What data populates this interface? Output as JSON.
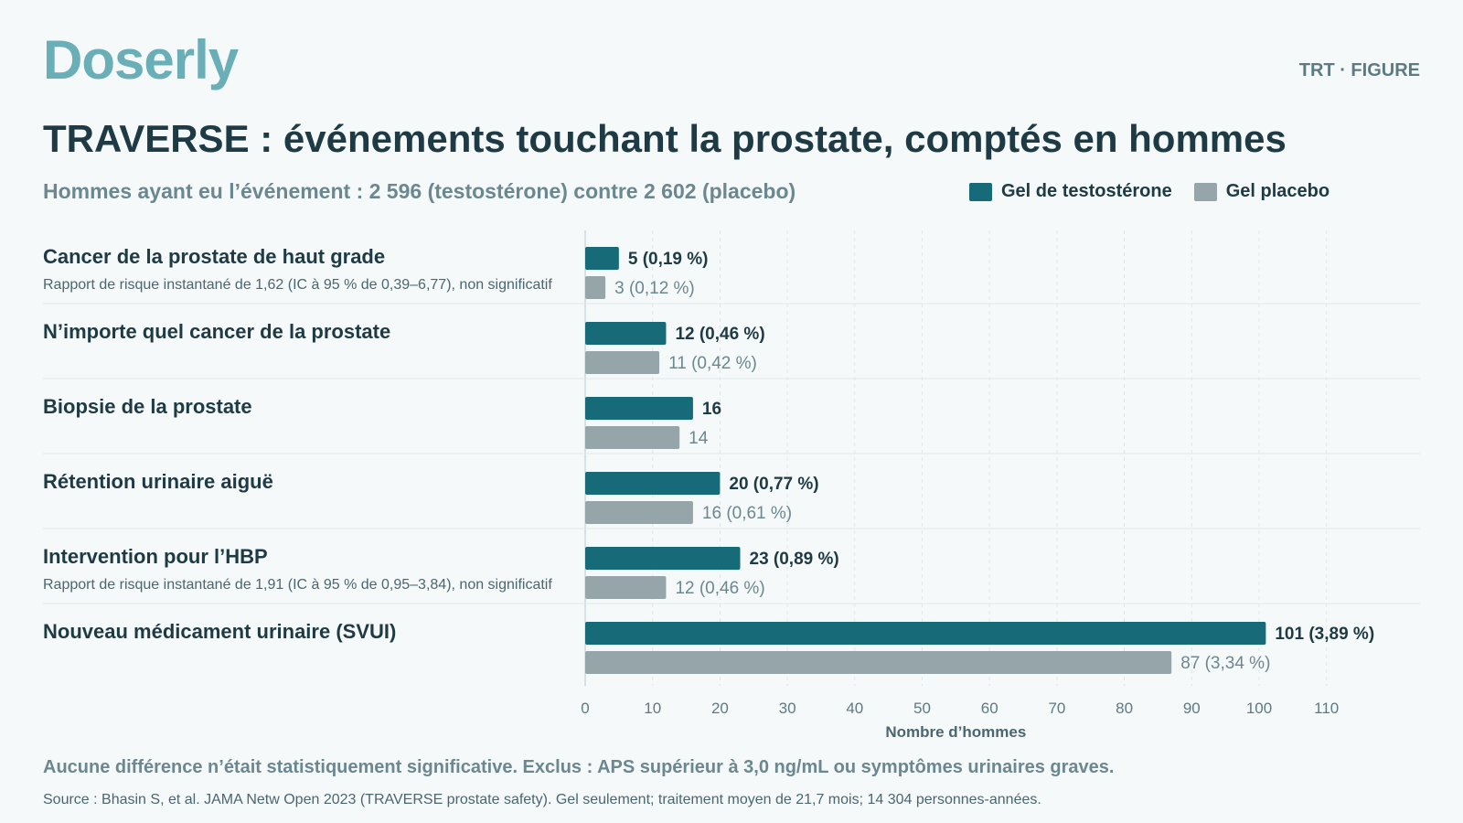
{
  "brand": {
    "logo_text": "Doserly",
    "tag": "TRT · FIGURE"
  },
  "colors": {
    "testosterone": "#176a77",
    "placebo": "#95a5aa",
    "logo": "#6aaeb8"
  },
  "legend": {
    "testosterone_label": "Gel de testostérone",
    "placebo_label": "Gel placebo"
  },
  "footer": {
    "note": "Aucune différence n’était statistiquement significative. Exclus : APS supérieur à 3,0 ng/mL ou symptômes urinaires graves.",
    "source": "Source : Bhasin S, et al. JAMA Netw Open 2023 (TRAVERSE prostate safety). Gel seulement; traitement moyen de 21,7 mois; 14 304 personnes-années."
  },
  "chart_data": {
    "type": "bar",
    "orientation": "horizontal",
    "title": "TRAVERSE : événements touchant la prostate, comptés en hommes",
    "subtitle": "Hommes ayant eu l’événement : 2 596 (testostérone) contre 2 602 (placebo)",
    "xlabel": "Nombre d’hommes",
    "xlim": [
      0,
      110
    ],
    "xticks": [
      0,
      10,
      20,
      30,
      40,
      50,
      60,
      70,
      80,
      90,
      100,
      110
    ],
    "grid": true,
    "legend_position": "top-right",
    "categories": [
      {
        "label": "Cancer de la prostate de haut grade",
        "note": "Rapport de risque instantané de 1,62 (IC à 95 % de 0,39–6,77), non significatif"
      },
      {
        "label": "N’importe quel cancer de la prostate",
        "note": ""
      },
      {
        "label": "Biopsie de la prostate",
        "note": ""
      },
      {
        "label": "Rétention urinaire aiguë",
        "note": ""
      },
      {
        "label": "Intervention pour l’HBP",
        "note": "Rapport de risque instantané de 1,91 (IC à 95 % de 0,95–3,84), non significatif"
      },
      {
        "label": "Nouveau médicament urinaire (SVUI)",
        "note": ""
      }
    ],
    "series": [
      {
        "name": "Gel de testostérone",
        "values": [
          5,
          12,
          16,
          20,
          23,
          101
        ],
        "labels": [
          "5 (0,19 %)",
          "12 (0,46 %)",
          "16",
          "20 (0,77 %)",
          "23 (0,89 %)",
          "101 (3,89 %)"
        ]
      },
      {
        "name": "Gel placebo",
        "values": [
          3,
          11,
          14,
          16,
          12,
          87
        ],
        "labels": [
          "3 (0,12 %)",
          "11 (0,42 %)",
          "14",
          "16 (0,61 %)",
          "12 (0,46 %)",
          "87 (3,34 %)"
        ]
      }
    ]
  }
}
